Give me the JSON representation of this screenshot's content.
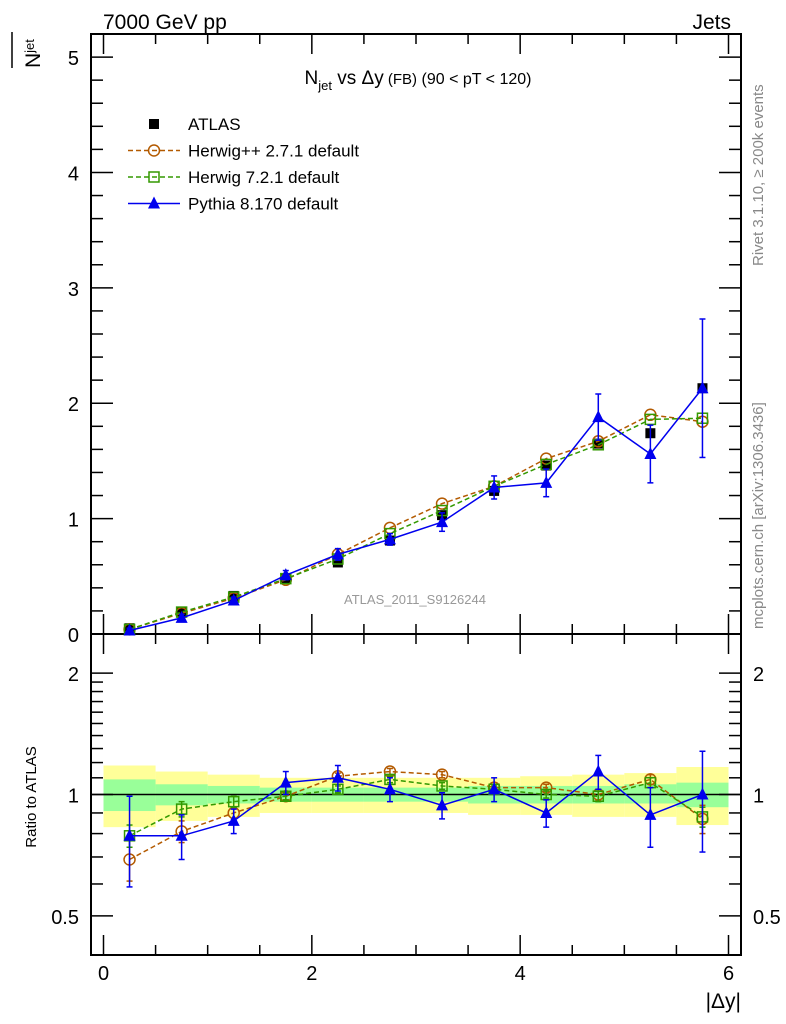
{
  "header": {
    "left": "7000 GeV pp",
    "right": "Jets"
  },
  "side_labels": {
    "rivet": "Rivet 3.1.10, ≥ 200k events",
    "mcplots": "mcplots.cern.ch [arXiv:1306.3436]"
  },
  "watermark": "ATLAS_2011_S9126244",
  "chart_data": [
    {
      "type": "scatter",
      "title": {
        "main": "N",
        "sub": "jet",
        "rest": " vs Δy",
        "small": " (FB)",
        "tail": " (90 < pT < 120)"
      },
      "ylabel": {
        "main": "N",
        "sub": "jet"
      },
      "xlabel": "|Δy|",
      "xlim": [
        -0.12,
        6.12
      ],
      "ylim": [
        0,
        5.2
      ],
      "xticks": [
        "0",
        "2",
        "4",
        "6"
      ],
      "yticks": [
        "0",
        "1",
        "2",
        "3",
        "4",
        "5"
      ],
      "x": [
        0.25,
        0.75,
        1.25,
        1.75,
        2.25,
        2.75,
        3.25,
        3.75,
        4.25,
        4.75,
        5.25,
        5.75
      ],
      "series": [
        {
          "name": "ATLAS",
          "color": "#000000",
          "marker": "square-filled",
          "line": "none",
          "values": [
            0.05,
            0.19,
            0.33,
            0.48,
            0.62,
            0.81,
            1.03,
            1.24,
            1.46,
            1.65,
            1.74,
            2.13
          ]
        },
        {
          "name": "Herwig++ 2.7.1 default",
          "color": "#b35a00",
          "marker": "circle-open",
          "line": "dashed",
          "values": [
            0.04,
            0.18,
            0.31,
            0.47,
            0.69,
            0.92,
            1.13,
            1.28,
            1.52,
            1.67,
            1.9,
            1.84
          ]
        },
        {
          "name": "Herwig 7.2.1 default",
          "color": "#339900",
          "marker": "square-open",
          "line": "dashed",
          "values": [
            0.04,
            0.19,
            0.32,
            0.48,
            0.65,
            0.87,
            1.07,
            1.28,
            1.47,
            1.64,
            1.86,
            1.87
          ]
        },
        {
          "name": "Pythia 8.170 default",
          "color": "#0000ee",
          "marker": "triangle-filled",
          "line": "solid",
          "values": [
            0.03,
            0.14,
            0.29,
            0.51,
            0.69,
            0.82,
            0.97,
            1.27,
            1.31,
            1.88,
            1.56,
            2.13
          ],
          "yerr": [
            0.02,
            0.03,
            0.03,
            0.04,
            0.05,
            0.05,
            0.08,
            0.1,
            0.12,
            0.2,
            0.25,
            0.6
          ]
        }
      ]
    },
    {
      "type": "scatter",
      "ylabel": "Ratio to ATLAS",
      "yscale": "log",
      "ylim": [
        0.4,
        2.5
      ],
      "yticks": [
        "0.5",
        "1",
        "2"
      ],
      "x": [
        0.25,
        0.75,
        1.25,
        1.75,
        2.25,
        2.75,
        3.25,
        3.75,
        4.25,
        4.75,
        5.25,
        5.75
      ],
      "bands": {
        "bins": [
          [
            0,
            0.5
          ],
          [
            0.5,
            1
          ],
          [
            1,
            1.5
          ],
          [
            1.5,
            2
          ],
          [
            2,
            2.5
          ],
          [
            2.5,
            3
          ],
          [
            3,
            3.5
          ],
          [
            3.5,
            4
          ],
          [
            4,
            4.5
          ],
          [
            4.5,
            5
          ],
          [
            5,
            5.5
          ],
          [
            5.5,
            6
          ]
        ],
        "outer": {
          "color": "#ffff99",
          "lo": [
            0.83,
            0.86,
            0.88,
            0.9,
            0.9,
            0.9,
            0.9,
            0.89,
            0.89,
            0.88,
            0.88,
            0.84
          ],
          "hi": [
            1.18,
            1.14,
            1.12,
            1.1,
            1.1,
            1.1,
            1.1,
            1.1,
            1.11,
            1.12,
            1.13,
            1.17
          ]
        },
        "inner": {
          "color": "#99ff99",
          "lo": [
            0.91,
            0.94,
            0.95,
            0.96,
            0.96,
            0.96,
            0.96,
            0.95,
            0.95,
            0.95,
            0.95,
            0.93
          ],
          "hi": [
            1.09,
            1.06,
            1.05,
            1.04,
            1.04,
            1.04,
            1.04,
            1.05,
            1.05,
            1.05,
            1.06,
            1.07
          ]
        }
      },
      "series": [
        {
          "name": "Herwig++ 2.7.1 default",
          "color": "#b35a00",
          "marker": "circle-open",
          "line": "dashed",
          "values": [
            0.69,
            0.81,
            0.9,
            0.99,
            1.11,
            1.14,
            1.12,
            1.04,
            1.04,
            1.0,
            1.09,
            0.87
          ],
          "yerr": [
            0.08,
            0.05,
            0.03,
            0.02,
            0.02,
            0.02,
            0.02,
            0.02,
            0.02,
            0.03,
            0.03,
            0.07
          ]
        },
        {
          "name": "Herwig 7.2.1 default",
          "color": "#339900",
          "marker": "square-open",
          "line": "dashed",
          "values": [
            0.79,
            0.92,
            0.96,
            0.99,
            1.03,
            1.09,
            1.05,
            1.03,
            1.0,
            0.99,
            1.07,
            0.88
          ],
          "yerr": [
            0.05,
            0.04,
            0.03,
            0.02,
            0.02,
            0.02,
            0.02,
            0.02,
            0.02,
            0.03,
            0.03,
            0.05
          ]
        },
        {
          "name": "Pythia 8.170 default",
          "color": "#0000ee",
          "marker": "triangle-filled",
          "line": "solid",
          "values": [
            0.79,
            0.79,
            0.86,
            1.07,
            1.1,
            1.03,
            0.94,
            1.03,
            0.9,
            1.14,
            0.89,
            1.0
          ],
          "yerr": [
            0.2,
            0.1,
            0.06,
            0.07,
            0.08,
            0.07,
            0.07,
            0.07,
            0.07,
            0.11,
            0.15,
            0.28
          ]
        }
      ]
    }
  ]
}
